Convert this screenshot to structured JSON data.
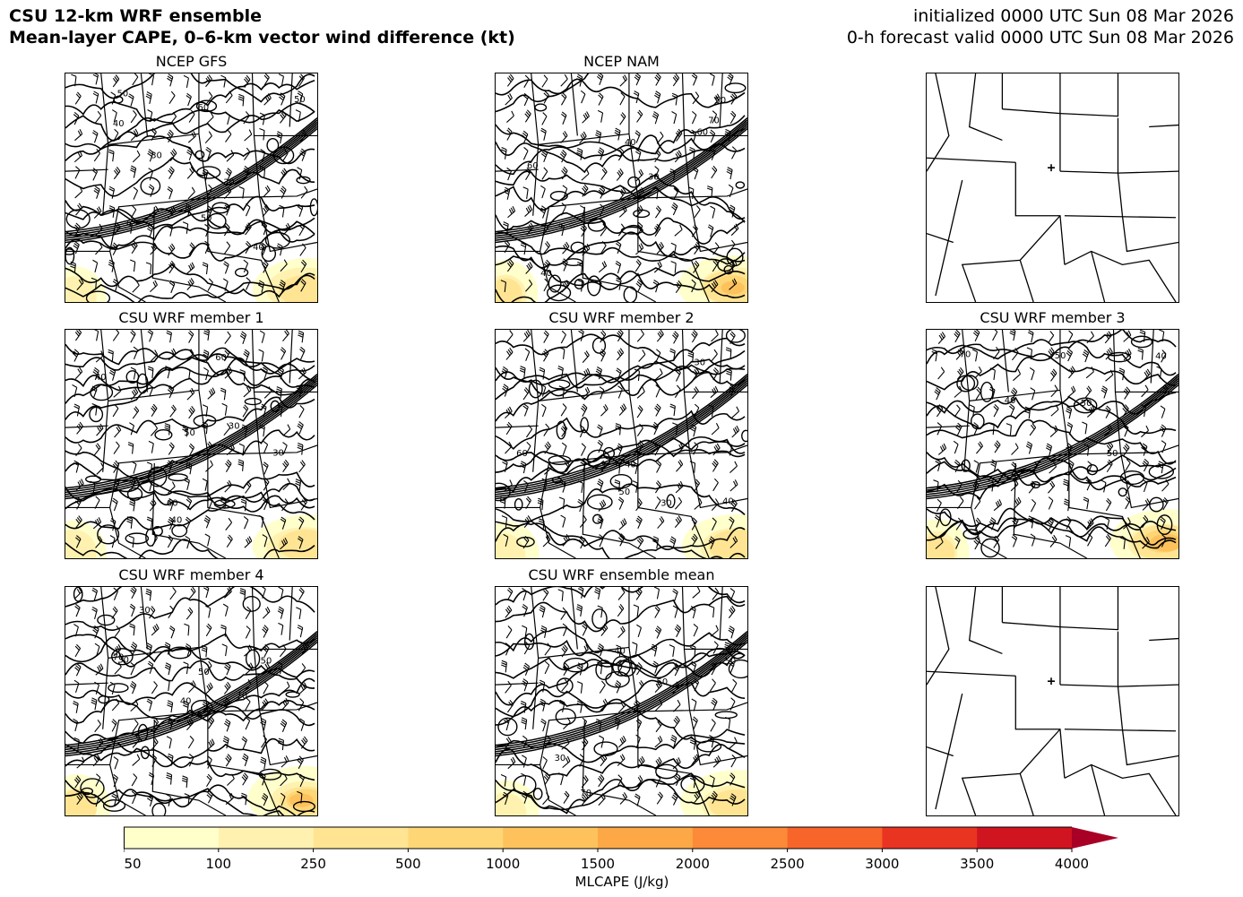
{
  "header": {
    "title_line1": "CSU 12-km WRF ensemble",
    "title_line2": "Mean-layer CAPE, 0–6-km vector wind difference (kt)",
    "init_line": "initialized 0000 UTC Sun 08 Mar 2026",
    "valid_line": "0-h forecast valid 0000 UTC Sun 08 Mar 2026"
  },
  "panels": [
    {
      "title": "NCEP GFS",
      "kind": "forecast"
    },
    {
      "title": "NCEP NAM",
      "kind": "forecast"
    },
    {
      "title": "",
      "kind": "basemap"
    },
    {
      "title": "CSU WRF member 1",
      "kind": "forecast"
    },
    {
      "title": "CSU WRF member 2",
      "kind": "forecast"
    },
    {
      "title": "CSU WRF member 3",
      "kind": "forecast"
    },
    {
      "title": "CSU WRF member 4",
      "kind": "forecast"
    },
    {
      "title": "CSU WRF ensemble mean",
      "kind": "forecast"
    },
    {
      "title": "",
      "kind": "basemap"
    }
  ],
  "contour_labels": {
    "gfs": [
      "50",
      "30",
      "40",
      "30",
      "50",
      "40",
      "50",
      "60"
    ],
    "nam": [
      "30",
      "40",
      "50",
      "40",
      "60",
      "70",
      "60"
    ],
    "m1": [
      "40",
      "60",
      "50",
      "30",
      "40",
      "60",
      "30"
    ],
    "m2": [
      "40",
      "60",
      "50",
      "40",
      "30",
      "30"
    ],
    "m3": [
      "40",
      "50",
      "50",
      "70",
      "40",
      "50"
    ],
    "m4": [
      "40",
      "30",
      "50",
      "30",
      "70",
      "50",
      "70"
    ],
    "mean": [
      "40",
      "30",
      "50",
      "70",
      "50"
    ]
  },
  "colorbar": {
    "label": "MLCAPE (J/kg)",
    "ticks": [
      "50",
      "100",
      "250",
      "500",
      "1000",
      "1500",
      "2000",
      "2500",
      "3000",
      "3500",
      "4000"
    ],
    "colors": [
      "#ffffcc",
      "#fff2b0",
      "#ffe593",
      "#fed676",
      "#fec25c",
      "#fda847",
      "#fc8a38",
      "#f8652b",
      "#ea3422",
      "#d01420",
      "#a90026"
    ],
    "extend": "max"
  }
}
